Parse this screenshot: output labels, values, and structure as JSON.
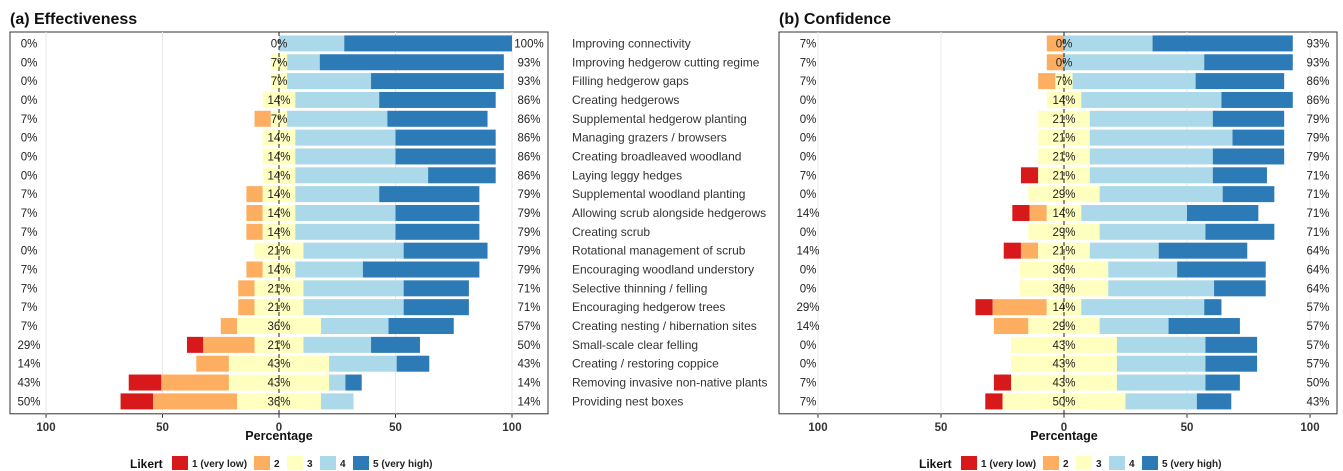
{
  "items": [
    "Improving connectivity",
    "Improving hedgerow cutting regime",
    "Filling hedgerow gaps",
    "Creating hedgerows",
    "Supplemental hedgerow planting",
    "Managing grazers / browsers",
    "Creating broadleaved woodland",
    "Laying leggy hedges",
    "Supplemental woodland planting",
    "Allowing scrub alongside hedgerows",
    "Creating scrub",
    "Rotational management of scrub",
    "Encouraging woodland understory",
    "Selective thinning / felling",
    "Encouraging hedgerow trees",
    "Creating nesting / hibernation sites",
    "Small-scale clear felling",
    "Creating / restoring coppice",
    "Removing invasive non-native plants",
    "Providing nest boxes"
  ],
  "chart_data": [
    {
      "type": "bar",
      "title": "(a) Effectiveness",
      "xlabel": "Percentage",
      "xticks": [
        "100",
        "50",
        "0",
        "50",
        "100"
      ],
      "xlim": [
        -100,
        100
      ],
      "series_names": [
        "1 (very low)",
        "2",
        "3",
        "4",
        "5 (very high)"
      ],
      "low_labels": [
        "0%",
        "0%",
        "0%",
        "0%",
        "7%",
        "0%",
        "0%",
        "0%",
        "7%",
        "7%",
        "7%",
        "0%",
        "7%",
        "7%",
        "7%",
        "7%",
        "29%",
        "14%",
        "43%",
        "50%"
      ],
      "neutral_labels": [
        "0%",
        "7%",
        "7%",
        "14%",
        "7%",
        "14%",
        "14%",
        "14%",
        "14%",
        "14%",
        "14%",
        "21%",
        "14%",
        "21%",
        "21%",
        "36%",
        "21%",
        "43%",
        "43%",
        "36%"
      ],
      "high_labels": [
        "100%",
        "93%",
        "93%",
        "86%",
        "86%",
        "86%",
        "86%",
        "86%",
        "79%",
        "79%",
        "79%",
        "79%",
        "79%",
        "71%",
        "71%",
        "57%",
        "50%",
        "43%",
        "14%",
        "14%"
      ],
      "values": [
        [
          0,
          0,
          0,
          28,
          72
        ],
        [
          0,
          0,
          7,
          14,
          79
        ],
        [
          0,
          0,
          7,
          36,
          57
        ],
        [
          0,
          0,
          14,
          36,
          50
        ],
        [
          0,
          7,
          7,
          43,
          43
        ],
        [
          0,
          0,
          14,
          43,
          43
        ],
        [
          0,
          0,
          14,
          43,
          43
        ],
        [
          0,
          0,
          14,
          57,
          29
        ],
        [
          0,
          7,
          14,
          36,
          43
        ],
        [
          0,
          7,
          14,
          43,
          36
        ],
        [
          0,
          7,
          14,
          43,
          36
        ],
        [
          0,
          0,
          21,
          43,
          36
        ],
        [
          0,
          7,
          14,
          29,
          50
        ],
        [
          0,
          7,
          21,
          43,
          28
        ],
        [
          0,
          7,
          21,
          43,
          28
        ],
        [
          0,
          7,
          36,
          29,
          28
        ],
        [
          7,
          22,
          21,
          29,
          21
        ],
        [
          0,
          14,
          43,
          29,
          14
        ],
        [
          14,
          29,
          43,
          7,
          7
        ],
        [
          14,
          36,
          36,
          14,
          0
        ]
      ]
    },
    {
      "type": "bar",
      "title": "(b) Confidence",
      "xlabel": "Percentage",
      "xticks": [
        "100",
        "50",
        "0",
        "50",
        "100"
      ],
      "xlim": [
        -100,
        100
      ],
      "series_names": [
        "1 (very low)",
        "2",
        "3",
        "4",
        "5 (very high)"
      ],
      "low_labels": [
        "7%",
        "7%",
        "7%",
        "0%",
        "0%",
        "0%",
        "0%",
        "7%",
        "0%",
        "14%",
        "0%",
        "14%",
        "0%",
        "0%",
        "29%",
        "14%",
        "0%",
        "0%",
        "7%",
        "7%"
      ],
      "neutral_labels": [
        "0%",
        "0%",
        "7%",
        "14%",
        "21%",
        "21%",
        "21%",
        "21%",
        "29%",
        "14%",
        "29%",
        "21%",
        "36%",
        "36%",
        "14%",
        "29%",
        "43%",
        "43%",
        "43%",
        "50%"
      ],
      "high_labels": [
        "93%",
        "93%",
        "86%",
        "86%",
        "79%",
        "79%",
        "79%",
        "71%",
        "71%",
        "71%",
        "71%",
        "64%",
        "64%",
        "64%",
        "57%",
        "57%",
        "57%",
        "57%",
        "50%",
        "43%"
      ],
      "values": [
        [
          0,
          7,
          0,
          36,
          57
        ],
        [
          0,
          7,
          0,
          57,
          36
        ],
        [
          0,
          7,
          7,
          50,
          36
        ],
        [
          0,
          0,
          14,
          57,
          29
        ],
        [
          0,
          0,
          21,
          50,
          29
        ],
        [
          0,
          0,
          21,
          58,
          21
        ],
        [
          0,
          0,
          21,
          50,
          29
        ],
        [
          7,
          0,
          21,
          50,
          22
        ],
        [
          0,
          0,
          29,
          50,
          21
        ],
        [
          7,
          7,
          14,
          43,
          29
        ],
        [
          0,
          0,
          29,
          43,
          28
        ],
        [
          7,
          7,
          21,
          28,
          36
        ],
        [
          0,
          0,
          36,
          28,
          36
        ],
        [
          0,
          0,
          36,
          43,
          21
        ],
        [
          7,
          22,
          14,
          50,
          7
        ],
        [
          0,
          14,
          29,
          28,
          29
        ],
        [
          0,
          0,
          43,
          36,
          21
        ],
        [
          0,
          0,
          43,
          36,
          21
        ],
        [
          7,
          0,
          43,
          36,
          14
        ],
        [
          7,
          0,
          50,
          29,
          14
        ]
      ]
    }
  ],
  "legend": {
    "title": "Likert",
    "labels": [
      "1 (very low)",
      "2",
      "3",
      "4",
      "5 (very high)"
    ]
  },
  "colors": [
    "#d7191c",
    "#fdae61",
    "#ffffbf",
    "#abd9e9",
    "#2c7bb6"
  ]
}
